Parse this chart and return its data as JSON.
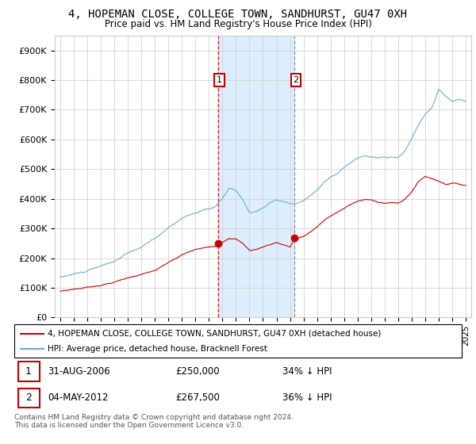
{
  "title": "4, HOPEMAN CLOSE, COLLEGE TOWN, SANDHURST, GU47 0XH",
  "subtitle": "Price paid vs. HM Land Registry's House Price Index (HPI)",
  "sale1_x": 2006.667,
  "sale1_price": 250000,
  "sale2_x": 2012.34,
  "sale2_price": 267500,
  "legend_entry1": "4, HOPEMAN CLOSE, COLLEGE TOWN, SANDHURST, GU47 0XH (detached house)",
  "legend_entry2": "HPI: Average price, detached house, Bracknell Forest",
  "footer": "Contains HM Land Registry data © Crown copyright and database right 2024.\nThis data is licensed under the Open Government Licence v3.0.",
  "hpi_color": "#6baed6",
  "price_color": "#cc0000",
  "shade_color": "#ddeeff",
  "ylim_max": 950000,
  "table1_label": "1",
  "table1_date": "31-AUG-2006",
  "table1_price": "£250,000",
  "table1_pct": "34% ↓ HPI",
  "table2_label": "2",
  "table2_date": "04-MAY-2012",
  "table2_price": "£267,500",
  "table2_pct": "36% ↓ HPI"
}
